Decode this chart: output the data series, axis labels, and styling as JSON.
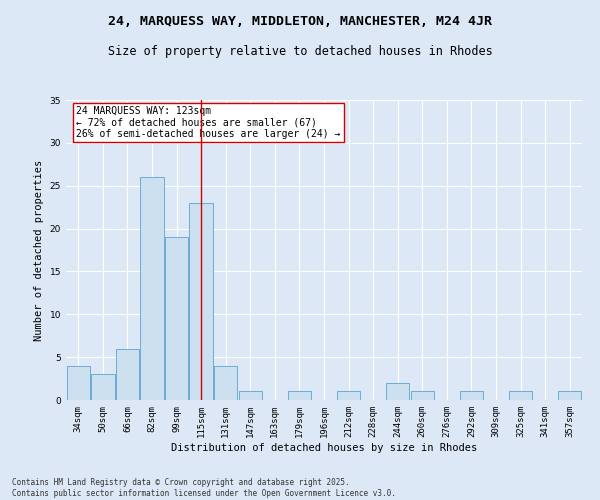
{
  "title1": "24, MARQUESS WAY, MIDDLETON, MANCHESTER, M24 4JR",
  "title2": "Size of property relative to detached houses in Rhodes",
  "xlabel": "Distribution of detached houses by size in Rhodes",
  "ylabel": "Number of detached properties",
  "categories": [
    "34sqm",
    "50sqm",
    "66sqm",
    "82sqm",
    "99sqm",
    "115sqm",
    "131sqm",
    "147sqm",
    "163sqm",
    "179sqm",
    "196sqm",
    "212sqm",
    "228sqm",
    "244sqm",
    "260sqm",
    "276sqm",
    "292sqm",
    "309sqm",
    "325sqm",
    "341sqm",
    "357sqm"
  ],
  "values": [
    4,
    3,
    6,
    26,
    19,
    23,
    4,
    1,
    0,
    1,
    0,
    1,
    0,
    2,
    1,
    0,
    1,
    0,
    1,
    0,
    1
  ],
  "bar_color": "#cce0f0",
  "bar_edge_color": "#5ba3d0",
  "vline_x_index": 5,
  "vline_color": "#cc0000",
  "annotation_text": "24 MARQUESS WAY: 123sqm\n← 72% of detached houses are smaller (67)\n26% of semi-detached houses are larger (24) →",
  "annotation_box_color": "#ffffff",
  "annotation_box_edge": "#cc0000",
  "ylim": [
    0,
    35
  ],
  "yticks": [
    0,
    5,
    10,
    15,
    20,
    25,
    30,
    35
  ],
  "background_color": "#dce8f5",
  "grid_color": "#ffffff",
  "footnote": "Contains HM Land Registry data © Crown copyright and database right 2025.\nContains public sector information licensed under the Open Government Licence v3.0.",
  "title_fontsize": 9.5,
  "subtitle_fontsize": 8.5,
  "axis_label_fontsize": 7.5,
  "tick_fontsize": 6.5,
  "annotation_fontsize": 7,
  "footnote_fontsize": 5.5
}
